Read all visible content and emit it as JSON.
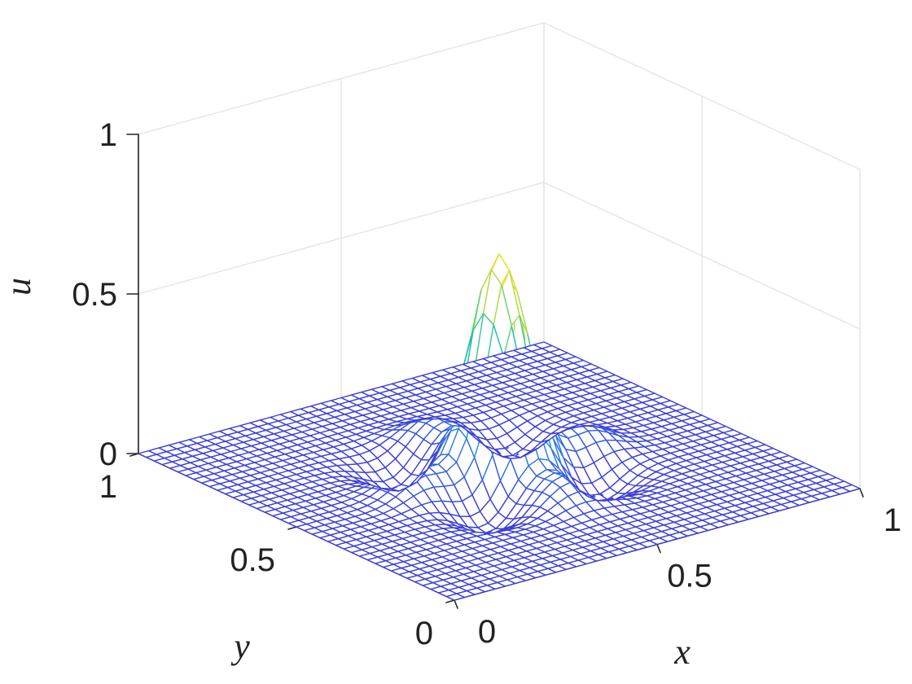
{
  "chart_data": {
    "type": "surface",
    "title": "",
    "xlabel": "x",
    "ylabel": "y",
    "zlabel": "u",
    "xlim": [
      0,
      1
    ],
    "ylim": [
      0,
      1
    ],
    "zlim": [
      0,
      1
    ],
    "x_ticks": [
      {
        "value": 0,
        "label": "0"
      },
      {
        "value": 0.5,
        "label": "0.5"
      },
      {
        "value": 1,
        "label": "1"
      }
    ],
    "y_ticks": [
      {
        "value": 0,
        "label": "0"
      },
      {
        "value": 0.5,
        "label": "0.5"
      },
      {
        "value": 1,
        "label": "1"
      }
    ],
    "z_ticks": [
      {
        "value": 0,
        "label": "0"
      },
      {
        "value": 0.5,
        "label": "0.5"
      },
      {
        "value": 1,
        "label": "1"
      }
    ],
    "grid": true,
    "mesh": {
      "x_range": [
        0,
        1
      ],
      "y_range": [
        0,
        1
      ],
      "resolution": 40,
      "peak": {
        "x": 0.5,
        "y": 0.5,
        "u": 0.68
      },
      "peak_width": 0.058,
      "ripple_amplitude": 0.075,
      "ripple_radius": 0.2,
      "ripple_width": 0.055,
      "ripple_lobes": 4
    },
    "colormap": [
      "#3d3fd8",
      "#2a85e6",
      "#12b8b8",
      "#50d184",
      "#c7dc33",
      "#f9e21a"
    ]
  }
}
